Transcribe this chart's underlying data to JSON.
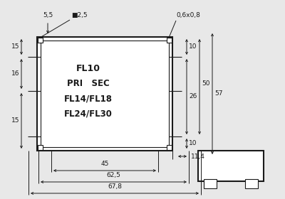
{
  "bg_color": "#e8e8e8",
  "line_color": "#1a1a1a",
  "text_color": "#1a1a1a",
  "labels": {
    "title1": "FL10",
    "title2": "PRI   SEC",
    "title3": "FL14/FL18",
    "title4": "FL24/FL30"
  },
  "dim_55": "5,5",
  "dim_25": "■2,5",
  "dim_068": "0,6x0,8",
  "dim_15a": "15",
  "dim_16": "16",
  "dim_15b": "15",
  "dim_10a": "10",
  "dim_50": "50",
  "dim_26": "26",
  "dim_57": "57",
  "dim_10b": "10",
  "dim_114": "11,4",
  "dim_45": "45",
  "dim_625": "62,5",
  "dim_678": "67,8"
}
